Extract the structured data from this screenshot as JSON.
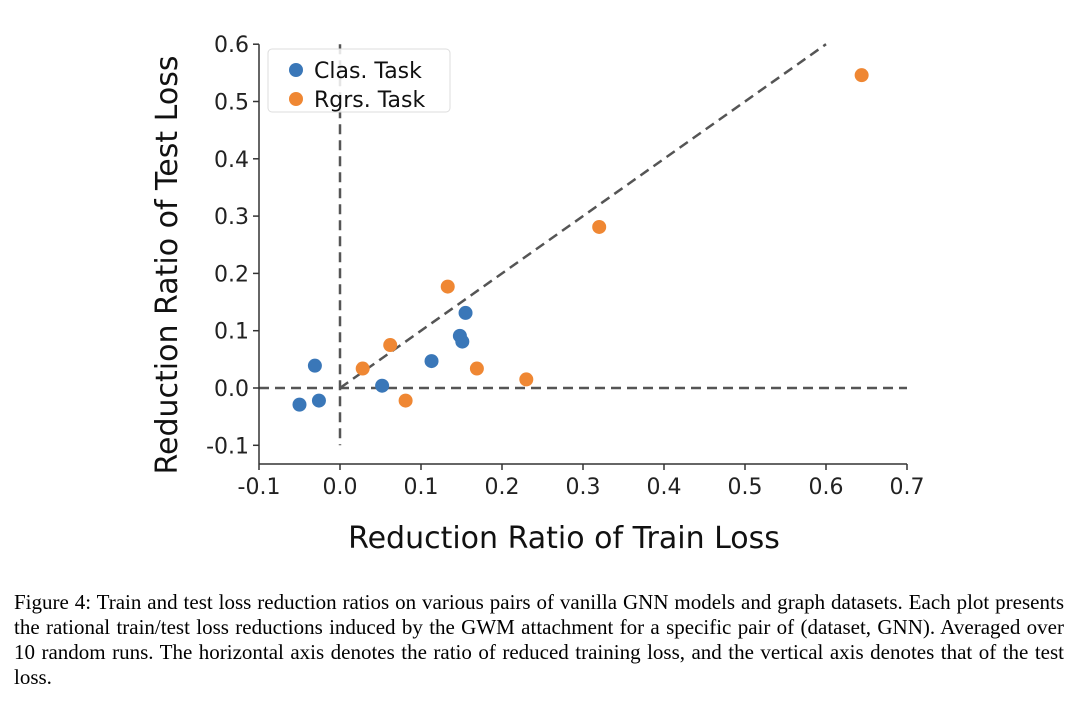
{
  "chart_data": {
    "type": "scatter",
    "title": "",
    "xlabel": "Reduction Ratio of Train Loss",
    "ylabel": "Reduction Ratio of Test Loss",
    "xlim": [
      -0.1,
      0.7
    ],
    "ylim": [
      -0.13,
      0.6
    ],
    "xticks": [
      -0.1,
      0.0,
      0.1,
      0.2,
      0.3,
      0.4,
      0.5,
      0.6,
      0.7
    ],
    "xtick_labels": [
      "-0.1",
      "0.0",
      "0.1",
      "0.2",
      "0.3",
      "0.4",
      "0.5",
      "0.6",
      "0.7"
    ],
    "yticks": [
      -0.1,
      0.0,
      0.1,
      0.2,
      0.3,
      0.4,
      0.5,
      0.6
    ],
    "ytick_labels": [
      "-0.1",
      "0.0",
      "0.1",
      "0.2",
      "0.3",
      "0.4",
      "0.5",
      "0.6"
    ],
    "grid": false,
    "legend_position": "top-left",
    "reference_lines": [
      {
        "type": "horizontal",
        "y": 0.0,
        "style": "dashed"
      },
      {
        "type": "vertical",
        "x": 0.0,
        "style": "dashed"
      },
      {
        "type": "diagonal",
        "from": [
          0.0,
          0.0
        ],
        "to": [
          0.6,
          0.6
        ],
        "style": "dashed"
      }
    ],
    "series": [
      {
        "name": "Clas. Task",
        "color": "#3a77b8",
        "points": [
          {
            "x": 0.155,
            "y": 0.131
          },
          {
            "x": 0.148,
            "y": 0.091
          },
          {
            "x": 0.151,
            "y": 0.081
          },
          {
            "x": -0.031,
            "y": 0.039
          },
          {
            "x": 0.113,
            "y": 0.047
          },
          {
            "x": 0.052,
            "y": 0.004
          },
          {
            "x": -0.05,
            "y": -0.029
          },
          {
            "x": -0.026,
            "y": -0.022
          }
        ]
      },
      {
        "name": "Rgrs. Task",
        "color": "#ef8733",
        "points": [
          {
            "x": 0.644,
            "y": 0.546
          },
          {
            "x": 0.32,
            "y": 0.281
          },
          {
            "x": 0.133,
            "y": 0.177
          },
          {
            "x": 0.062,
            "y": 0.075
          },
          {
            "x": 0.028,
            "y": 0.034
          },
          {
            "x": 0.169,
            "y": 0.034
          },
          {
            "x": 0.23,
            "y": 0.015
          },
          {
            "x": 0.081,
            "y": -0.022
          }
        ]
      }
    ]
  },
  "caption": "Figure 4: Train and test loss reduction ratios on various pairs of vanilla GNN models and graph datasets. Each plot presents the rational train/test loss reductions induced by the GWM attachment for a specific pair of (dataset, GNN). Averaged over 10 random runs. The horizontal axis denotes the ratio of reduced training loss, and the vertical axis denotes that of the test loss."
}
